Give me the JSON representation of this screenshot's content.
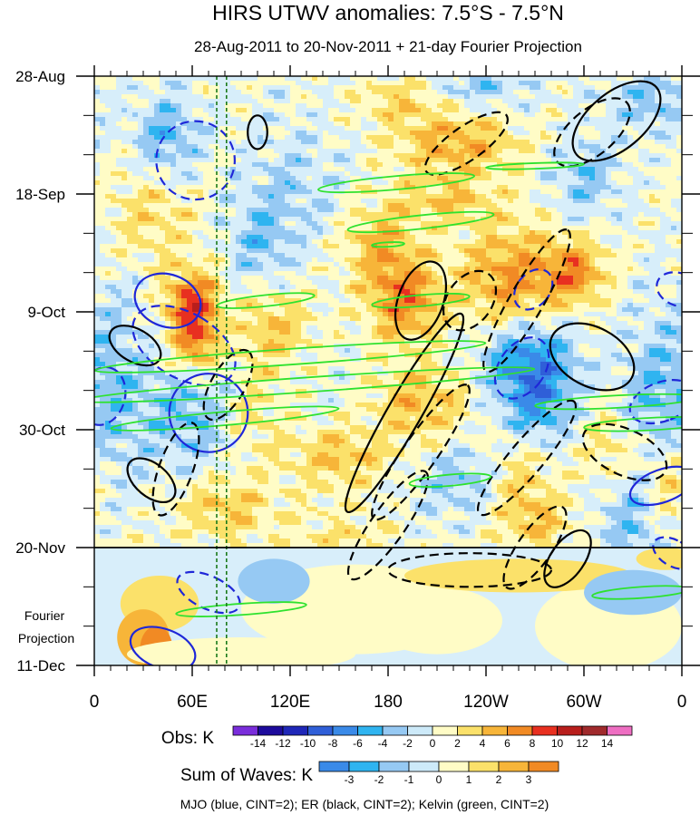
{
  "chart_data": {
    "type": "heatmap",
    "title": "HIRS UTWV anomalies: 7.5°S - 7.5°N",
    "subtitle": "28-Aug-2011 to 20-Nov-2011 + 21-day Fourier Projection",
    "x_ticks": [
      "0",
      "60E",
      "120E",
      "180",
      "120W",
      "60W",
      "0"
    ],
    "y_ticks": [
      "28-Aug",
      "18-Sep",
      "9-Oct",
      "30-Oct",
      "20-Nov",
      "11-Dec"
    ],
    "x_range": [
      0,
      360
    ],
    "y_range_days": [
      0,
      105
    ],
    "projection_label": [
      "Fourier",
      "Projection"
    ],
    "forecast_start": "20-Nov",
    "obs_colorbar": {
      "label": "Obs: K",
      "levels": [
        "-14",
        "-12",
        "-10",
        "-8",
        "-6",
        "-4",
        "-2",
        "0",
        "2",
        "4",
        "6",
        "8",
        "10",
        "12",
        "14"
      ],
      "colors": [
        "#7a2ddb",
        "#1d0b9c",
        "#1f27b8",
        "#2f5fd8",
        "#3a8ae8",
        "#2fb4f0",
        "#96c9f3",
        "#cdeaf9",
        "#fffcc6",
        "#fbe16a",
        "#f7b539",
        "#f18a24",
        "#e83020",
        "#b81e1c",
        "#a02a2c",
        "#ee6ec2"
      ]
    },
    "waves_colorbar": {
      "label": "Sum of Waves: K",
      "levels": [
        "-3",
        "-2",
        "-1",
        "0",
        "1",
        "2",
        "3"
      ],
      "colors": [
        "#3a8ae8",
        "#2fb4f0",
        "#96c9f3",
        "#cdeaf9",
        "#fffcc6",
        "#fbe16a",
        "#f7b539",
        "#f18a24"
      ]
    },
    "series": [
      {
        "name": "MJO",
        "color": "blue",
        "cint": 2
      },
      {
        "name": "ER",
        "color": "black",
        "cint": 2
      },
      {
        "name": "Kelvin",
        "color": "green",
        "cint": 2
      }
    ],
    "footer": "MJO (blue, CINT=2); ER (black, CINT=2); Kelvin (green, CINT=2)",
    "vertical_marker_lons": [
      75,
      81
    ]
  }
}
